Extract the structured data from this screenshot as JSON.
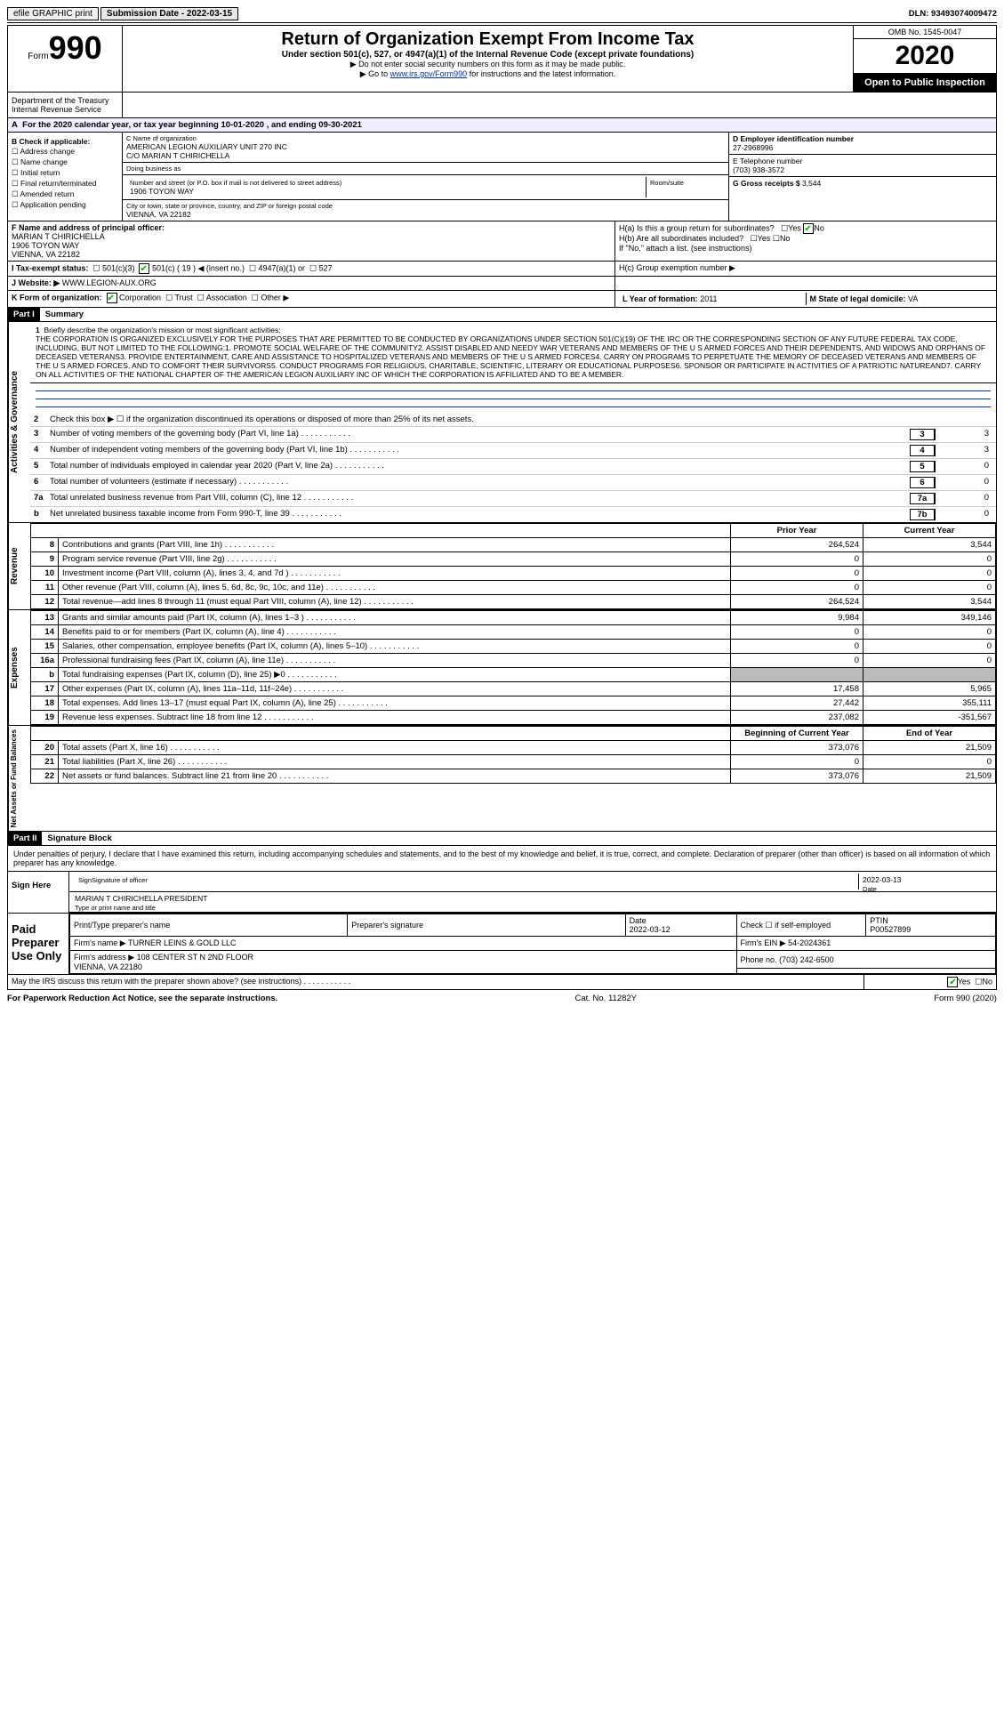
{
  "top": {
    "efile": "efile GRAPHIC print",
    "submission_label": "Submission Date - 2022-03-15",
    "dln": "DLN: 93493074009472"
  },
  "header": {
    "form_word": "Form",
    "form_num": "990",
    "title": "Return of Organization Exempt From Income Tax",
    "subtitle": "Under section 501(c), 527, or 4947(a)(1) of the Internal Revenue Code (except private foundations)",
    "note1": "▶ Do not enter social security numbers on this form as it may be made public.",
    "note2_pre": "▶ Go to ",
    "note2_link": "www.irs.gov/Form990",
    "note2_post": " for instructions and the latest information.",
    "omb": "OMB No. 1545-0047",
    "year": "2020",
    "open": "Open to Public Inspection",
    "dept": "Department of the Treasury\nInternal Revenue Service"
  },
  "A": {
    "text": "For the 2020 calendar year, or tax year beginning 10-01-2020   , and ending 09-30-2021"
  },
  "B": {
    "label": "B Check if applicable:",
    "items": [
      "Address change",
      "Name change",
      "Initial return",
      "Final return/terminated",
      "Amended return",
      "Application pending"
    ],
    "checked": []
  },
  "C": {
    "name_label": "C Name of organization",
    "name": "AMERICAN LEGION AUXILIARY UNIT 270 INC",
    "co": "C/O MARIAN T CHIRICHELLA",
    "dba_label": "Doing business as",
    "addr_label": "Number and street (or P.O. box if mail is not delivered to street address)",
    "room_label": "Room/suite",
    "addr": "1906 TOYON WAY",
    "city_label": "City or town, state or province, country, and ZIP or foreign postal code",
    "city": "VIENNA, VA  22182"
  },
  "D": {
    "label": "D Employer identification number",
    "value": "27-2968996"
  },
  "E": {
    "label": "E Telephone number",
    "value": "(703) 938-3572"
  },
  "G": {
    "label": "G Gross receipts $",
    "value": "3,544"
  },
  "F": {
    "label": "F  Name and address of principal officer:",
    "name": "MARIAN T CHIRICHELLA",
    "addr1": "1906 TOYON WAY",
    "addr2": "VIENNA, VA  22182"
  },
  "H": {
    "a": "H(a)  Is this a group return for subordinates?",
    "a_yes": "Yes",
    "a_no": "No",
    "b": "H(b)  Are all subordinates included?",
    "b_yes": "Yes",
    "b_no": "No",
    "b_note": "If \"No,\" attach a list. (see instructions)",
    "c": "H(c)  Group exemption number ▶"
  },
  "I": {
    "label": "I    Tax-exempt status:",
    "opts": [
      "501(c)(3)",
      "501(c) ( 19 ) ◀ (insert no.)",
      "4947(a)(1) or",
      "527"
    ]
  },
  "J": {
    "label": "J   Website: ▶",
    "value": "WWW.LEGION-AUX.ORG"
  },
  "K": {
    "label": "K Form of organization:",
    "opts": [
      "Corporation",
      "Trust",
      "Association",
      "Other ▶"
    ]
  },
  "L": {
    "label": "L Year of formation:",
    "value": "2011"
  },
  "M": {
    "label": "M State of legal domicile:",
    "value": "VA"
  },
  "partI": {
    "label": "Part I",
    "title": "Summary"
  },
  "mission": {
    "num": "1",
    "label": "Briefly describe the organization's mission or most significant activities:",
    "text": "THE CORPORATION IS ORGANIZED EXCLUSIVELY FOR THE PURPOSES THAT ARE PERMITTED TO BE CONDUCTED BY ORGANIZATIONS UNDER SECTION 501(C)(19) OF THE IRC OR THE CORRESPONDING SECTION OF ANY FUTURE FEDERAL TAX CODE, INCLUDING, BUT NOT LIMITED TO THE FOLLOWING:1. PROMOTE SOCIAL WELFARE OF THE COMMUNITY2. ASSIST DISABLED AND NEEDY WAR VETERANS AND MEMBERS OF THE U S ARMED FORCES AND THEIR DEPENDENTS, AND WIDOWS AND ORPHANS OF DECEASED VETERANS3. PROVIDE ENTERTAINMENT, CARE AND ASSISTANCE TO HOSPITALIZED VETERANS AND MEMBERS OF THE U S ARMED FORCES4. CARRY ON PROGRAMS TO PERPETUATE THE MEMORY OF DECEASED VETERANS AND MEMBERS OF THE U S ARMED FORCES, AND TO COMFORT THEIR SURVIVORS5. CONDUCT PROGRAMS FOR RELIGIOUS, CHARITABLE, SCIENTIFIC, LITERARY OR EDUCATIONAL PURPOSES6. SPONSOR OR PARTICIPATE IN ACTIVITIES OF A PATRIOTIC NATUREAND7. CARRY ON ALL ACTIVITIES OF THE NATIONAL CHAPTER OF THE AMERICAN LEGION AUXILIARY INC OF WHICH THE CORPORATION IS AFFILIATED AND TO BE A MEMBER."
  },
  "lines": {
    "l2": "Check this box ▶ ☐ if the organization discontinued its operations or disposed of more than 25% of its net assets.",
    "l3": {
      "t": "Number of voting members of the governing body (Part VI, line 1a)",
      "v": "3"
    },
    "l4": {
      "t": "Number of independent voting members of the governing body (Part VI, line 1b)",
      "v": "3"
    },
    "l5": {
      "t": "Total number of individuals employed in calendar year 2020 (Part V, line 2a)",
      "v": "0"
    },
    "l6": {
      "t": "Total number of volunteers (estimate if necessary)",
      "v": "0"
    },
    "l7a": {
      "t": "Total unrelated business revenue from Part VIII, column (C), line 12",
      "v": "0"
    },
    "l7b": {
      "t": "Net unrelated business taxable income from Form 990-T, line 39",
      "v": "0"
    }
  },
  "fin_headers": {
    "prior": "Prior Year",
    "current": "Current Year",
    "by": "Beginning of Current Year",
    "ey": "End of Year"
  },
  "revenue": [
    {
      "n": "8",
      "t": "Contributions and grants (Part VIII, line 1h)",
      "p": "264,524",
      "c": "3,544"
    },
    {
      "n": "9",
      "t": "Program service revenue (Part VIII, line 2g)",
      "p": "0",
      "c": "0"
    },
    {
      "n": "10",
      "t": "Investment income (Part VIII, column (A), lines 3, 4, and 7d )",
      "p": "0",
      "c": "0"
    },
    {
      "n": "11",
      "t": "Other revenue (Part VIII, column (A), lines 5, 6d, 8c, 9c, 10c, and 11e)",
      "p": "0",
      "c": "0"
    },
    {
      "n": "12",
      "t": "Total revenue—add lines 8 through 11 (must equal Part VIII, column (A), line 12)",
      "p": "264,524",
      "c": "3,544"
    }
  ],
  "expenses": [
    {
      "n": "13",
      "t": "Grants and similar amounts paid (Part IX, column (A), lines 1–3 )",
      "p": "9,984",
      "c": "349,146"
    },
    {
      "n": "14",
      "t": "Benefits paid to or for members (Part IX, column (A), line 4)",
      "p": "0",
      "c": "0"
    },
    {
      "n": "15",
      "t": "Salaries, other compensation, employee benefits (Part IX, column (A), lines 5–10)",
      "p": "0",
      "c": "0"
    },
    {
      "n": "16a",
      "t": "Professional fundraising fees (Part IX, column (A), line 11e)",
      "p": "0",
      "c": "0"
    },
    {
      "n": "b",
      "t": "Total fundraising expenses (Part IX, column (D), line 25) ▶0",
      "p": "",
      "c": "",
      "grey": true
    },
    {
      "n": "17",
      "t": "Other expenses (Part IX, column (A), lines 11a–11d, 11f–24e)",
      "p": "17,458",
      "c": "5,965"
    },
    {
      "n": "18",
      "t": "Total expenses. Add lines 13–17 (must equal Part IX, column (A), line 25)",
      "p": "27,442",
      "c": "355,111"
    },
    {
      "n": "19",
      "t": "Revenue less expenses. Subtract line 18 from line 12",
      "p": "237,082",
      "c": "-351,567"
    }
  ],
  "netassets": [
    {
      "n": "20",
      "t": "Total assets (Part X, line 16)",
      "p": "373,076",
      "c": "21,509"
    },
    {
      "n": "21",
      "t": "Total liabilities (Part X, line 26)",
      "p": "0",
      "c": "0"
    },
    {
      "n": "22",
      "t": "Net assets or fund balances. Subtract line 21 from line 20",
      "p": "373,076",
      "c": "21,509"
    }
  ],
  "sidelabels": {
    "act": "Activities & Governance",
    "rev": "Revenue",
    "exp": "Expenses",
    "net": "Net Assets or Fund Balances"
  },
  "partII": {
    "label": "Part II",
    "title": "Signature Block"
  },
  "sig_text": "Under penalties of perjury, I declare that I have examined this return, including accompanying schedules and statements, and to the best of my knowledge and belief, it is true, correct, and complete. Declaration of preparer (other than officer) is based on all information of which preparer has any knowledge.",
  "sign": {
    "here": "Sign Here",
    "officer_sig": "SignSignature of officer",
    "date": "2022-03-13",
    "date_lbl": "Date",
    "officer_name": "MARIAN T CHIRICHELLA  PRESIDENT",
    "officer_lbl": "Type or print name and title"
  },
  "preparer": {
    "label": "Paid Preparer Use Only",
    "name_lbl": "Print/Type preparer's name",
    "sig_lbl": "Preparer's signature",
    "date_lbl": "Date",
    "date": "2022-03-12",
    "self_lbl": "Check ☐ if self-employed",
    "ptin_lbl": "PTIN",
    "ptin": "P00527899",
    "firm_name_lbl": "Firm's name    ▶",
    "firm_name": "TURNER LEINS & GOLD LLC",
    "firm_ein_lbl": "Firm's EIN ▶",
    "firm_ein": "54-2024361",
    "firm_addr_lbl": "Firm's address ▶",
    "firm_addr1": "108 CENTER ST N 2ND FLOOR",
    "firm_addr2": "VIENNA, VA  22180",
    "phone_lbl": "Phone no.",
    "phone": "(703) 242-6500"
  },
  "discuss": {
    "text": "May the IRS discuss this return with the preparer shown above? (see instructions)",
    "yes": "Yes",
    "no": "No"
  },
  "footer": {
    "left": "For Paperwork Reduction Act Notice, see the separate instructions.",
    "mid": "Cat. No. 11282Y",
    "right": "Form 990 (2020)"
  }
}
